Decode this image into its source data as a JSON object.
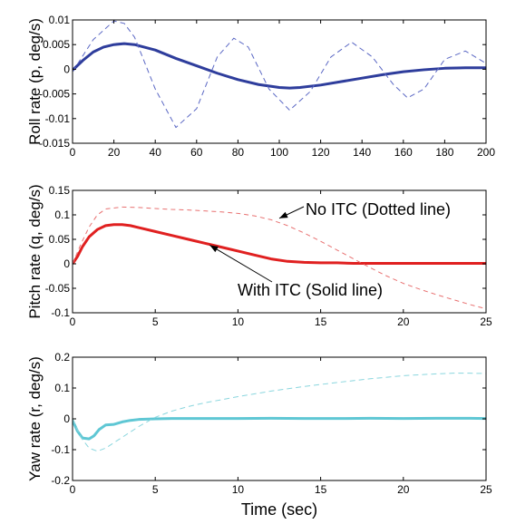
{
  "chart_data": [
    {
      "type": "line",
      "ylabel": "Roll rate (p, deg/s)",
      "xlabel": "",
      "xlim": [
        0,
        200
      ],
      "ylim": [
        -0.015,
        0.01
      ],
      "xticks": [
        "0",
        "20",
        "40",
        "60",
        "80",
        "100",
        "120",
        "140",
        "160",
        "180",
        "200"
      ],
      "yticks": [
        "0.01",
        "0.005",
        "0",
        "-0.005",
        "-0.01",
        "-0.015"
      ],
      "grid": false,
      "series": [
        {
          "style": "solid",
          "color": "#2e3d9c",
          "x": [
            0,
            5,
            10,
            15,
            20,
            25,
            30,
            40,
            50,
            60,
            70,
            80,
            90,
            100,
            105,
            110,
            120,
            130,
            140,
            150,
            160,
            170,
            180,
            190,
            200
          ],
          "y": [
            -0.0002,
            0.0018,
            0.0035,
            0.0045,
            0.005,
            0.0052,
            0.005,
            0.0039,
            0.0022,
            0.0007,
            -0.0008,
            -0.0021,
            -0.0031,
            -0.0037,
            -0.0038,
            -0.0037,
            -0.0032,
            -0.0025,
            -0.0018,
            -0.0011,
            -0.0005,
            -0.0001,
            0.0002,
            0.0003,
            0.0003
          ]
        },
        {
          "style": "dashed",
          "color": "#5a67c4",
          "x": [
            0,
            10,
            20,
            25,
            30,
            40,
            50,
            60,
            70,
            78,
            85,
            95,
            105,
            115,
            125,
            135,
            145,
            155,
            162,
            170,
            180,
            190,
            200
          ],
          "y": [
            -0.0005,
            0.006,
            0.0098,
            0.0093,
            0.0065,
            -0.004,
            -0.0118,
            -0.008,
            0.0025,
            0.0063,
            0.0045,
            -0.004,
            -0.0083,
            -0.0045,
            0.0025,
            0.0055,
            0.0025,
            -0.003,
            -0.0058,
            -0.004,
            0.002,
            0.0037,
            0.0012
          ]
        }
      ]
    },
    {
      "type": "line",
      "ylabel": "Pitch rate (q, deg/s)",
      "xlabel": "",
      "xlim": [
        0,
        25
      ],
      "ylim": [
        -0.1,
        0.15
      ],
      "xticks": [
        "0",
        "5",
        "10",
        "15",
        "20",
        "25"
      ],
      "yticks": [
        "0.15",
        "0.1",
        "0.05",
        "0",
        "-0.05",
        "-0.1"
      ],
      "grid": false,
      "annotations": [
        {
          "text": "No ITC (Dotted line)",
          "target": [
            12.5,
            0.093
          ]
        },
        {
          "text": "With ITC (Solid line)",
          "target": [
            8.3,
            0.038
          ]
        }
      ],
      "series": [
        {
          "style": "solid",
          "color": "#e02020",
          "x": [
            0,
            0.3,
            0.6,
            1.0,
            1.5,
            2.0,
            2.5,
            3.0,
            3.5,
            4,
            5,
            6,
            7,
            8,
            9,
            10,
            11,
            12,
            13,
            14,
            15,
            16,
            17,
            18,
            20,
            22,
            25
          ],
          "y": [
            0,
            0.015,
            0.035,
            0.055,
            0.07,
            0.078,
            0.08,
            0.08,
            0.078,
            0.074,
            0.066,
            0.058,
            0.05,
            0.042,
            0.034,
            0.026,
            0.018,
            0.01,
            0.005,
            0.003,
            0.002,
            0.002,
            0.001,
            0.001,
            0.001,
            0.001,
            0.001
          ]
        },
        {
          "style": "dashed",
          "color": "#e87070",
          "x": [
            0,
            0.5,
            1,
            1.5,
            2,
            3,
            4,
            5,
            6,
            7,
            8,
            9,
            10,
            11,
            12,
            13,
            14,
            15,
            16,
            17,
            18,
            19,
            20,
            21,
            22,
            23,
            24,
            25
          ],
          "y": [
            0,
            0.04,
            0.075,
            0.1,
            0.112,
            0.116,
            0.115,
            0.113,
            0.111,
            0.11,
            0.108,
            0.106,
            0.103,
            0.098,
            0.09,
            0.078,
            0.063,
            0.046,
            0.028,
            0.01,
            -0.008,
            -0.025,
            -0.04,
            -0.052,
            -0.063,
            -0.073,
            -0.083,
            -0.092
          ]
        }
      ]
    },
    {
      "type": "line",
      "ylabel": "Yaw rate (r, deg/s)",
      "xlabel": "Time (sec)",
      "xlim": [
        0,
        25
      ],
      "ylim": [
        -0.2,
        0.2
      ],
      "xticks": [
        "0",
        "5",
        "10",
        "15",
        "20",
        "25"
      ],
      "yticks": [
        "0.2",
        "0.1",
        "0",
        "-0.1",
        "-0.2"
      ],
      "grid": false,
      "series": [
        {
          "style": "solid",
          "color": "#5fc7d4",
          "x": [
            0,
            0.3,
            0.6,
            1.0,
            1.3,
            1.6,
            2.0,
            2.5,
            3.0,
            3.5,
            4.0,
            5,
            6,
            8,
            10,
            12,
            14,
            16,
            18,
            20,
            22,
            24,
            25
          ],
          "y": [
            -0.005,
            -0.04,
            -0.062,
            -0.065,
            -0.055,
            -0.035,
            -0.02,
            -0.018,
            -0.01,
            -0.005,
            -0.002,
            0.0,
            0.001,
            0.001,
            0.001,
            0.002,
            0.001,
            0.001,
            0.002,
            0.001,
            0.002,
            0.002,
            0.001
          ]
        },
        {
          "style": "dashed",
          "color": "#8ad6de",
          "x": [
            0,
            0.5,
            1,
            1.5,
            2,
            3,
            4,
            5,
            6,
            7,
            8,
            10,
            12,
            14,
            16,
            18,
            20,
            22,
            23,
            24,
            25
          ],
          "y": [
            0,
            -0.06,
            -0.095,
            -0.105,
            -0.095,
            -0.06,
            -0.025,
            0.005,
            0.025,
            0.04,
            0.052,
            0.072,
            0.09,
            0.105,
            0.118,
            0.13,
            0.14,
            0.146,
            0.148,
            0.148,
            0.147
          ]
        }
      ]
    }
  ]
}
